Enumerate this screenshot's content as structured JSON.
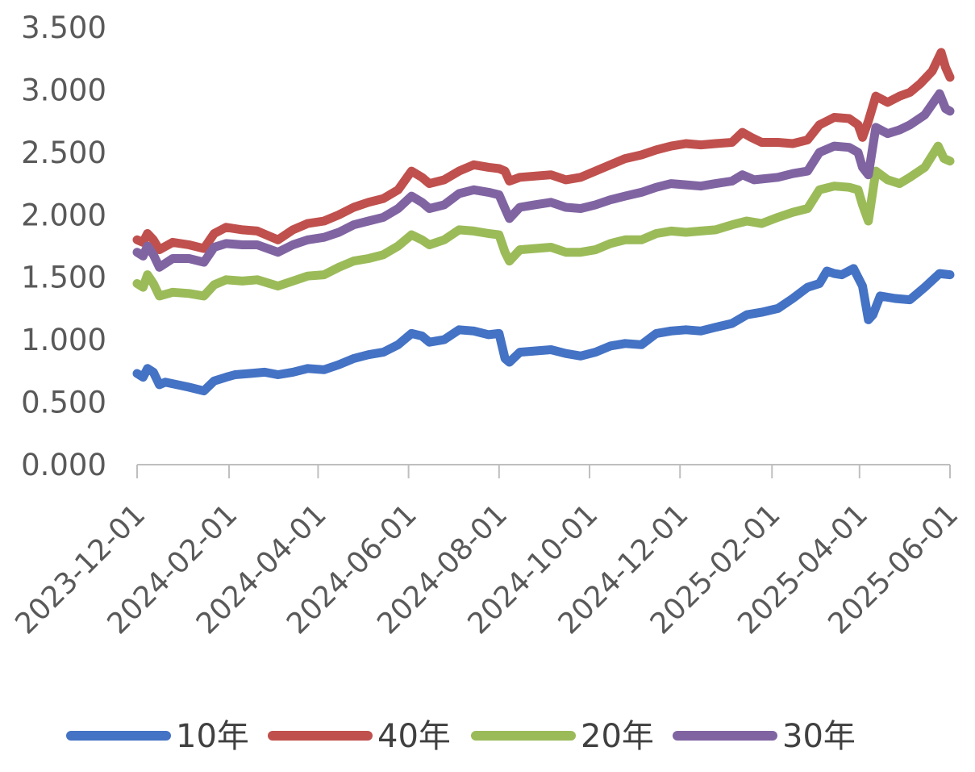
{
  "chart_data": {
    "type": "line",
    "title": "",
    "xlabel": "",
    "ylabel": "",
    "ylim": [
      0,
      3.5
    ],
    "yticks": [
      "0.000",
      "0.500",
      "1.000",
      "1.500",
      "2.000",
      "2.500",
      "3.000",
      "3.500"
    ],
    "xticks": [
      "2023-12-01",
      "2024-02-01",
      "2024-04-01",
      "2024-06-01",
      "2024-08-01",
      "2024-10-01",
      "2024-12-01",
      "2025-02-01",
      "2025-04-01",
      "2025-06-01"
    ],
    "xlim": [
      "2023-12-01",
      "2025-06-01"
    ],
    "legend_position": "bottom",
    "grid": false,
    "legend_order": [
      "10年",
      "40年",
      "20年",
      "30年"
    ],
    "series": [
      {
        "name": "10年",
        "color": "#4472C4",
        "points": [
          [
            "2023-12-01",
            0.73
          ],
          [
            "2023-12-05",
            0.7
          ],
          [
            "2023-12-08",
            0.77
          ],
          [
            "2023-12-12",
            0.74
          ],
          [
            "2023-12-16",
            0.64
          ],
          [
            "2023-12-20",
            0.66
          ],
          [
            "2023-12-28",
            0.64
          ],
          [
            "2024-01-05",
            0.62
          ],
          [
            "2024-01-15",
            0.59
          ],
          [
            "2024-01-22",
            0.67
          ],
          [
            "2024-01-30",
            0.7
          ],
          [
            "2024-02-05",
            0.72
          ],
          [
            "2024-02-15",
            0.73
          ],
          [
            "2024-02-25",
            0.74
          ],
          [
            "2024-03-05",
            0.72
          ],
          [
            "2024-03-15",
            0.74
          ],
          [
            "2024-03-25",
            0.77
          ],
          [
            "2024-04-05",
            0.76
          ],
          [
            "2024-04-15",
            0.8
          ],
          [
            "2024-04-25",
            0.85
          ],
          [
            "2024-05-05",
            0.88
          ],
          [
            "2024-05-15",
            0.9
          ],
          [
            "2024-05-25",
            0.96
          ],
          [
            "2024-06-03",
            1.05
          ],
          [
            "2024-06-10",
            1.03
          ],
          [
            "2024-06-15",
            0.98
          ],
          [
            "2024-06-25",
            1.0
          ],
          [
            "2024-07-05",
            1.08
          ],
          [
            "2024-07-15",
            1.07
          ],
          [
            "2024-07-25",
            1.04
          ],
          [
            "2024-08-01",
            1.05
          ],
          [
            "2024-08-05",
            0.85
          ],
          [
            "2024-08-08",
            0.82
          ],
          [
            "2024-08-15",
            0.9
          ],
          [
            "2024-08-25",
            0.91
          ],
          [
            "2024-09-05",
            0.92
          ],
          [
            "2024-09-15",
            0.89
          ],
          [
            "2024-09-25",
            0.87
          ],
          [
            "2024-10-05",
            0.9
          ],
          [
            "2024-10-15",
            0.95
          ],
          [
            "2024-10-25",
            0.97
          ],
          [
            "2024-11-05",
            0.96
          ],
          [
            "2024-11-15",
            1.05
          ],
          [
            "2024-11-25",
            1.07
          ],
          [
            "2024-12-05",
            1.08
          ],
          [
            "2024-12-15",
            1.07
          ],
          [
            "2024-12-25",
            1.1
          ],
          [
            "2025-01-05",
            1.13
          ],
          [
            "2025-01-15",
            1.2
          ],
          [
            "2025-01-25",
            1.22
          ],
          [
            "2025-02-05",
            1.25
          ],
          [
            "2025-02-15",
            1.33
          ],
          [
            "2025-02-25",
            1.42
          ],
          [
            "2025-03-05",
            1.45
          ],
          [
            "2025-03-10",
            1.55
          ],
          [
            "2025-03-15",
            1.53
          ],
          [
            "2025-03-20",
            1.52
          ],
          [
            "2025-03-28",
            1.57
          ],
          [
            "2025-04-03",
            1.43
          ],
          [
            "2025-04-07",
            1.16
          ],
          [
            "2025-04-10",
            1.2
          ],
          [
            "2025-04-15",
            1.35
          ],
          [
            "2025-04-25",
            1.33
          ],
          [
            "2025-05-05",
            1.32
          ],
          [
            "2025-05-15",
            1.42
          ],
          [
            "2025-05-25",
            1.53
          ],
          [
            "2025-06-01",
            1.52
          ]
        ]
      },
      {
        "name": "40年",
        "color": "#C0504D",
        "points": [
          [
            "2023-12-01",
            1.8
          ],
          [
            "2023-12-05",
            1.78
          ],
          [
            "2023-12-08",
            1.85
          ],
          [
            "2023-12-12",
            1.8
          ],
          [
            "2023-12-16",
            1.72
          ],
          [
            "2023-12-25",
            1.78
          ],
          [
            "2024-01-05",
            1.76
          ],
          [
            "2024-01-15",
            1.73
          ],
          [
            "2024-01-22",
            1.85
          ],
          [
            "2024-01-30",
            1.9
          ],
          [
            "2024-02-10",
            1.88
          ],
          [
            "2024-02-20",
            1.87
          ],
          [
            "2024-03-05",
            1.8
          ],
          [
            "2024-03-15",
            1.88
          ],
          [
            "2024-03-25",
            1.93
          ],
          [
            "2024-04-05",
            1.95
          ],
          [
            "2024-04-15",
            2.0
          ],
          [
            "2024-04-25",
            2.06
          ],
          [
            "2024-05-05",
            2.1
          ],
          [
            "2024-05-15",
            2.13
          ],
          [
            "2024-05-25",
            2.2
          ],
          [
            "2024-06-03",
            2.35
          ],
          [
            "2024-06-10",
            2.3
          ],
          [
            "2024-06-15",
            2.25
          ],
          [
            "2024-06-25",
            2.28
          ],
          [
            "2024-07-05",
            2.35
          ],
          [
            "2024-07-15",
            2.4
          ],
          [
            "2024-07-25",
            2.38
          ],
          [
            "2024-08-01",
            2.37
          ],
          [
            "2024-08-05",
            2.35
          ],
          [
            "2024-08-08",
            2.27
          ],
          [
            "2024-08-15",
            2.3
          ],
          [
            "2024-08-25",
            2.31
          ],
          [
            "2024-09-05",
            2.32
          ],
          [
            "2024-09-15",
            2.28
          ],
          [
            "2024-09-25",
            2.3
          ],
          [
            "2024-10-05",
            2.35
          ],
          [
            "2024-10-15",
            2.4
          ],
          [
            "2024-10-25",
            2.45
          ],
          [
            "2024-11-05",
            2.48
          ],
          [
            "2024-11-15",
            2.52
          ],
          [
            "2024-11-25",
            2.55
          ],
          [
            "2024-12-05",
            2.57
          ],
          [
            "2024-12-15",
            2.56
          ],
          [
            "2024-12-25",
            2.57
          ],
          [
            "2025-01-05",
            2.58
          ],
          [
            "2025-01-12",
            2.66
          ],
          [
            "2025-01-18",
            2.62
          ],
          [
            "2025-01-25",
            2.58
          ],
          [
            "2025-02-05",
            2.58
          ],
          [
            "2025-02-15",
            2.57
          ],
          [
            "2025-02-25",
            2.6
          ],
          [
            "2025-03-05",
            2.72
          ],
          [
            "2025-03-15",
            2.78
          ],
          [
            "2025-03-25",
            2.77
          ],
          [
            "2025-03-31",
            2.72
          ],
          [
            "2025-04-03",
            2.62
          ],
          [
            "2025-04-07",
            2.75
          ],
          [
            "2025-04-12",
            2.95
          ],
          [
            "2025-04-20",
            2.9
          ],
          [
            "2025-04-28",
            2.95
          ],
          [
            "2025-05-05",
            2.98
          ],
          [
            "2025-05-12",
            3.05
          ],
          [
            "2025-05-20",
            3.15
          ],
          [
            "2025-05-26",
            3.3
          ],
          [
            "2025-05-29",
            3.18
          ],
          [
            "2025-06-01",
            3.1
          ]
        ]
      },
      {
        "name": "20年",
        "color": "#9BBB59",
        "points": [
          [
            "2023-12-01",
            1.45
          ],
          [
            "2023-12-05",
            1.42
          ],
          [
            "2023-12-08",
            1.52
          ],
          [
            "2023-12-12",
            1.45
          ],
          [
            "2023-12-16",
            1.35
          ],
          [
            "2023-12-25",
            1.38
          ],
          [
            "2024-01-05",
            1.37
          ],
          [
            "2024-01-15",
            1.35
          ],
          [
            "2024-01-22",
            1.44
          ],
          [
            "2024-01-30",
            1.48
          ],
          [
            "2024-02-10",
            1.47
          ],
          [
            "2024-02-20",
            1.48
          ],
          [
            "2024-03-05",
            1.43
          ],
          [
            "2024-03-15",
            1.47
          ],
          [
            "2024-03-25",
            1.51
          ],
          [
            "2024-04-05",
            1.52
          ],
          [
            "2024-04-15",
            1.58
          ],
          [
            "2024-04-25",
            1.63
          ],
          [
            "2024-05-05",
            1.65
          ],
          [
            "2024-05-15",
            1.68
          ],
          [
            "2024-05-25",
            1.75
          ],
          [
            "2024-06-03",
            1.84
          ],
          [
            "2024-06-10",
            1.8
          ],
          [
            "2024-06-15",
            1.76
          ],
          [
            "2024-06-25",
            1.8
          ],
          [
            "2024-07-05",
            1.88
          ],
          [
            "2024-07-15",
            1.87
          ],
          [
            "2024-07-25",
            1.85
          ],
          [
            "2024-08-01",
            1.84
          ],
          [
            "2024-08-05",
            1.7
          ],
          [
            "2024-08-08",
            1.63
          ],
          [
            "2024-08-15",
            1.72
          ],
          [
            "2024-08-25",
            1.73
          ],
          [
            "2024-09-05",
            1.74
          ],
          [
            "2024-09-15",
            1.7
          ],
          [
            "2024-09-25",
            1.7
          ],
          [
            "2024-10-05",
            1.72
          ],
          [
            "2024-10-15",
            1.77
          ],
          [
            "2024-10-25",
            1.8
          ],
          [
            "2024-11-05",
            1.8
          ],
          [
            "2024-11-15",
            1.85
          ],
          [
            "2024-11-25",
            1.87
          ],
          [
            "2024-12-05",
            1.86
          ],
          [
            "2024-12-15",
            1.87
          ],
          [
            "2024-12-25",
            1.88
          ],
          [
            "2025-01-05",
            1.92
          ],
          [
            "2025-01-15",
            1.95
          ],
          [
            "2025-01-25",
            1.93
          ],
          [
            "2025-02-05",
            1.98
          ],
          [
            "2025-02-15",
            2.02
          ],
          [
            "2025-02-25",
            2.05
          ],
          [
            "2025-03-05",
            2.2
          ],
          [
            "2025-03-15",
            2.23
          ],
          [
            "2025-03-25",
            2.22
          ],
          [
            "2025-03-31",
            2.2
          ],
          [
            "2025-04-03",
            2.08
          ],
          [
            "2025-04-07",
            1.95
          ],
          [
            "2025-04-12",
            2.35
          ],
          [
            "2025-04-20",
            2.28
          ],
          [
            "2025-04-28",
            2.25
          ],
          [
            "2025-05-05",
            2.3
          ],
          [
            "2025-05-15",
            2.38
          ],
          [
            "2025-05-24",
            2.55
          ],
          [
            "2025-05-28",
            2.45
          ],
          [
            "2025-06-01",
            2.43
          ]
        ]
      },
      {
        "name": "30年",
        "color": "#8064A2",
        "points": [
          [
            "2023-12-01",
            1.7
          ],
          [
            "2023-12-05",
            1.67
          ],
          [
            "2023-12-08",
            1.75
          ],
          [
            "2023-12-12",
            1.68
          ],
          [
            "2023-12-16",
            1.58
          ],
          [
            "2023-12-25",
            1.65
          ],
          [
            "2024-01-05",
            1.65
          ],
          [
            "2024-01-15",
            1.62
          ],
          [
            "2024-01-22",
            1.74
          ],
          [
            "2024-01-30",
            1.77
          ],
          [
            "2024-02-10",
            1.76
          ],
          [
            "2024-02-20",
            1.76
          ],
          [
            "2024-03-05",
            1.7
          ],
          [
            "2024-03-15",
            1.76
          ],
          [
            "2024-03-25",
            1.8
          ],
          [
            "2024-04-05",
            1.82
          ],
          [
            "2024-04-15",
            1.86
          ],
          [
            "2024-04-25",
            1.92
          ],
          [
            "2024-05-05",
            1.95
          ],
          [
            "2024-05-15",
            1.98
          ],
          [
            "2024-05-25",
            2.05
          ],
          [
            "2024-06-03",
            2.15
          ],
          [
            "2024-06-10",
            2.1
          ],
          [
            "2024-06-15",
            2.05
          ],
          [
            "2024-06-25",
            2.08
          ],
          [
            "2024-07-05",
            2.17
          ],
          [
            "2024-07-15",
            2.2
          ],
          [
            "2024-07-25",
            2.18
          ],
          [
            "2024-08-01",
            2.16
          ],
          [
            "2024-08-05",
            2.05
          ],
          [
            "2024-08-08",
            1.97
          ],
          [
            "2024-08-15",
            2.06
          ],
          [
            "2024-08-25",
            2.08
          ],
          [
            "2024-09-05",
            2.1
          ],
          [
            "2024-09-15",
            2.06
          ],
          [
            "2024-09-25",
            2.05
          ],
          [
            "2024-10-05",
            2.08
          ],
          [
            "2024-10-15",
            2.12
          ],
          [
            "2024-10-25",
            2.15
          ],
          [
            "2024-11-05",
            2.18
          ],
          [
            "2024-11-15",
            2.22
          ],
          [
            "2024-11-25",
            2.25
          ],
          [
            "2024-12-05",
            2.24
          ],
          [
            "2024-12-15",
            2.23
          ],
          [
            "2024-12-25",
            2.25
          ],
          [
            "2025-01-05",
            2.27
          ],
          [
            "2025-01-12",
            2.32
          ],
          [
            "2025-01-20",
            2.28
          ],
          [
            "2025-02-05",
            2.3
          ],
          [
            "2025-02-15",
            2.33
          ],
          [
            "2025-02-25",
            2.35
          ],
          [
            "2025-03-05",
            2.5
          ],
          [
            "2025-03-15",
            2.55
          ],
          [
            "2025-03-25",
            2.54
          ],
          [
            "2025-03-31",
            2.5
          ],
          [
            "2025-04-03",
            2.38
          ],
          [
            "2025-04-07",
            2.32
          ],
          [
            "2025-04-12",
            2.7
          ],
          [
            "2025-04-20",
            2.65
          ],
          [
            "2025-04-28",
            2.68
          ],
          [
            "2025-05-05",
            2.72
          ],
          [
            "2025-05-15",
            2.8
          ],
          [
            "2025-05-25",
            2.97
          ],
          [
            "2025-05-29",
            2.85
          ],
          [
            "2025-06-01",
            2.83
          ]
        ]
      }
    ]
  }
}
